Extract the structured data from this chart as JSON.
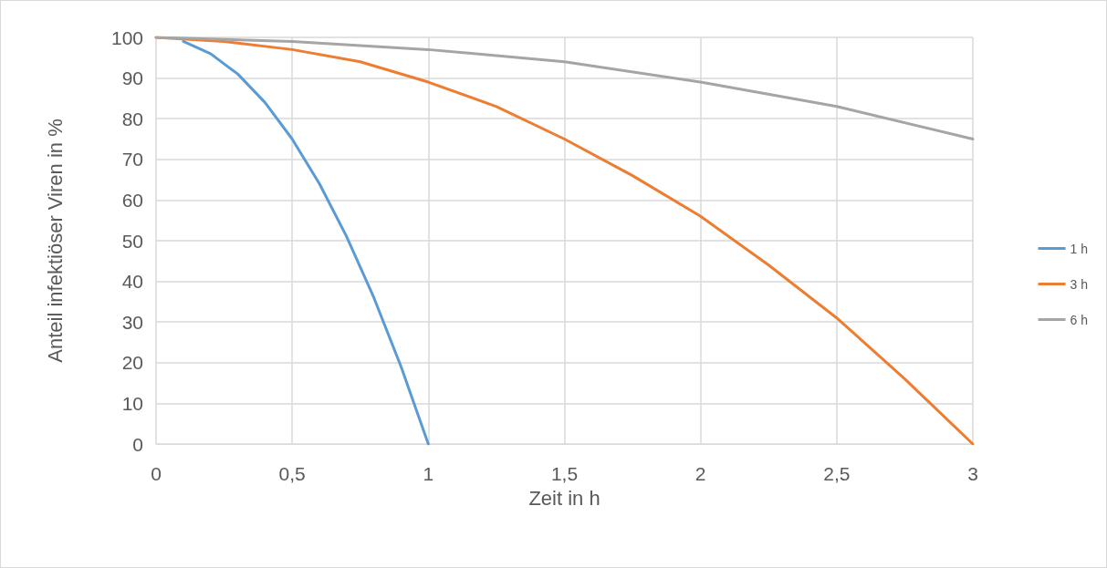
{
  "chart_data": {
    "type": "line",
    "xlabel": "Zeit in h",
    "ylabel": "Anteil infektiöser Viren in %",
    "xlim": [
      0,
      3
    ],
    "xticks": [
      0,
      {
        "value": 0.5,
        "label": "0,5"
      },
      1,
      {
        "value": 1.5,
        "label": "1,5"
      },
      2,
      {
        "value": 2.5,
        "label": "2,5"
      },
      3
    ],
    "ylim": [
      0,
      100
    ],
    "yticks": [
      0,
      10,
      20,
      30,
      40,
      50,
      60,
      70,
      80,
      90,
      100
    ],
    "grid": true,
    "legend": "right",
    "marker": "none",
    "line_style": "solid",
    "series": [
      {
        "name": "1 h",
        "color": "#5b9bd5",
        "x": [
          0.1,
          0.2,
          0.3,
          0.4,
          0.5,
          0.6,
          0.7,
          0.8,
          0.9,
          1
        ],
        "values": [
          99,
          96,
          91,
          84,
          75,
          64,
          51,
          36,
          19,
          0
        ]
      },
      {
        "name": "3 h",
        "color": "#ed7d31",
        "x": [
          0,
          0.25,
          0.5,
          0.75,
          1,
          1.25,
          1.5,
          1.75,
          2,
          2.25,
          2.5,
          2.75,
          3
        ],
        "values": [
          100,
          99,
          97,
          94,
          89,
          83,
          75,
          66,
          56,
          44,
          31,
          16,
          0
        ]
      },
      {
        "name": "6 h",
        "color": "#a5a5a5",
        "x": [
          0,
          0.5,
          1,
          1.5,
          2,
          2.5,
          3
        ],
        "values": [
          100,
          99,
          97,
          94,
          89,
          83,
          75
        ]
      }
    ]
  }
}
